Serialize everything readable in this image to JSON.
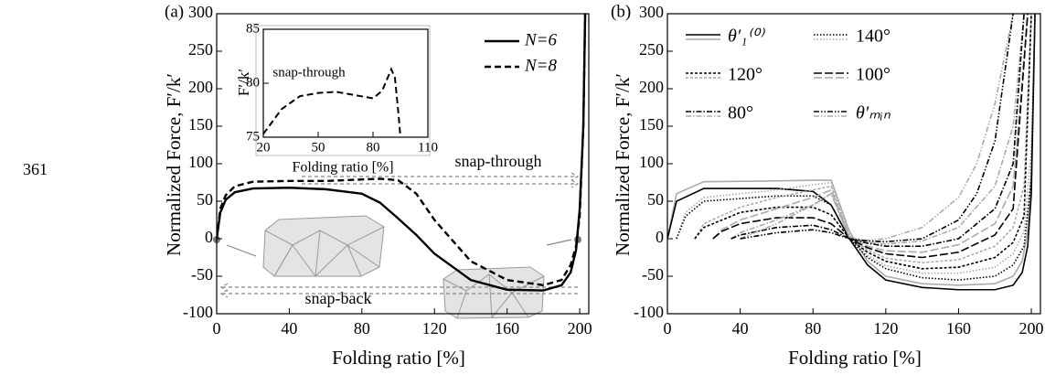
{
  "page_number": "361",
  "chart_data": [
    {
      "type": "line",
      "panel_label": "(a)",
      "xlabel": "Folding ratio [%]",
      "ylabel": "Normalized Force, F′/k′",
      "xlim": [
        0,
        205
      ],
      "ylim": [
        -100,
        300
      ],
      "xticks": [
        0,
        40,
        80,
        120,
        160,
        200
      ],
      "yticks": [
        -100,
        -50,
        0,
        50,
        100,
        150,
        200,
        250,
        300
      ],
      "legend": "upper right",
      "annotations": [
        "snap-through",
        "snap-back"
      ],
      "x": [
        0,
        2,
        5,
        10,
        20,
        40,
        60,
        80,
        90,
        100,
        110,
        120,
        140,
        160,
        180,
        190,
        195,
        198,
        200,
        202,
        203
      ],
      "series": [
        {
          "name": "N=6",
          "color": "#000000",
          "dash": "none",
          "values": [
            0,
            35,
            52,
            62,
            67,
            68,
            66,
            60,
            48,
            27,
            5,
            -20,
            -55,
            -68,
            -69,
            -62,
            -45,
            -15,
            40,
            150,
            300
          ]
        },
        {
          "name": "N=8",
          "color": "#000000",
          "dash": "7,4",
          "values": [
            0,
            40,
            58,
            70,
            76,
            77,
            77,
            79,
            80,
            78,
            60,
            25,
            -30,
            -55,
            -62,
            -55,
            -35,
            -10,
            30,
            150,
            300
          ]
        }
      ]
    },
    {
      "type": "line",
      "xlabel": "Folding ratio [%]",
      "ylabel": "F′/k′",
      "xlim": [
        20,
        110
      ],
      "ylim": [
        75,
        85
      ],
      "xticks": [
        20,
        50,
        80,
        110
      ],
      "yticks": [
        75,
        80,
        85
      ],
      "annotations": [
        "snap-through"
      ],
      "x": [
        20,
        30,
        40,
        50,
        60,
        70,
        80,
        85,
        88,
        90,
        92,
        94,
        95
      ],
      "series": [
        {
          "name": "N=8",
          "color": "#000000",
          "dash": "7,4",
          "values": [
            75.3,
            77.6,
            78.8,
            79.1,
            79.2,
            78.9,
            78.6,
            79.3,
            80.5,
            81.3,
            80.5,
            77,
            75
          ]
        }
      ]
    },
    {
      "type": "line",
      "panel_label": "(b)",
      "xlabel": "Folding ratio [%]",
      "ylabel": "Normalized Force, F′/k′",
      "xlim": [
        0,
        205
      ],
      "ylim": [
        -100,
        300
      ],
      "xticks": [
        0,
        40,
        80,
        120,
        160,
        200
      ],
      "yticks": [
        -100,
        -50,
        0,
        50,
        100,
        150,
        200,
        250,
        300
      ],
      "legend": "upper left",
      "series": [
        {
          "name": "θ′₁⁽⁰⁾",
          "color": "#000000",
          "gray_color": "#aaaaaa",
          "dash": "none",
          "x": [
            0,
            5,
            20,
            60,
            80,
            90,
            100,
            110,
            120,
            140,
            160,
            180,
            190,
            195,
            198,
            200,
            202
          ],
          "values": [
            0,
            50,
            67,
            67,
            63,
            45,
            0,
            -35,
            -55,
            -65,
            -68,
            -68,
            -62,
            -45,
            -10,
            60,
            300
          ],
          "gray_values": [
            0,
            60,
            76,
            77,
            78,
            78,
            10,
            -30,
            -50,
            -60,
            -62,
            -60,
            -50,
            -30,
            10,
            90,
            300
          ]
        },
        {
          "name": "140°",
          "color": "#000000",
          "gray_color": "#aaaaaa",
          "dash": "1.5,2",
          "x": [
            5,
            10,
            20,
            60,
            80,
            90,
            100,
            110,
            120,
            140,
            160,
            180,
            190,
            196,
            200,
            202
          ],
          "values": [
            0,
            30,
            50,
            57,
            57,
            45,
            0,
            -25,
            -40,
            -52,
            -55,
            -50,
            -35,
            -10,
            80,
            300
          ],
          "gray_values": [
            0,
            35,
            55,
            65,
            72,
            75,
            5,
            -22,
            -36,
            -46,
            -46,
            -38,
            -20,
            10,
            120,
            300
          ]
        },
        {
          "name": "120°",
          "color": "#000000",
          "gray_color": "#aaaaaa",
          "dash": "3,2",
          "x": [
            15,
            20,
            40,
            60,
            80,
            90,
            100,
            110,
            120,
            140,
            160,
            180,
            190,
            196,
            200
          ],
          "values": [
            0,
            15,
            35,
            42,
            42,
            32,
            0,
            -18,
            -30,
            -40,
            -38,
            -25,
            -5,
            30,
            300
          ],
          "gray_values": [
            0,
            20,
            42,
            55,
            65,
            70,
            3,
            -15,
            -26,
            -32,
            -28,
            -10,
            15,
            70,
            300
          ]
        },
        {
          "name": "100°",
          "color": "#000000",
          "gray_color": "#aaaaaa",
          "dash": "9,3",
          "x": [
            25,
            30,
            40,
            60,
            80,
            90,
            100,
            110,
            120,
            140,
            160,
            180,
            190,
            198
          ],
          "values": [
            0,
            10,
            20,
            28,
            28,
            20,
            0,
            -12,
            -20,
            -25,
            -18,
            5,
            40,
            300
          ],
          "gray_values": [
            0,
            12,
            25,
            40,
            55,
            65,
            3,
            -10,
            -16,
            -18,
            -8,
            20,
            70,
            300
          ]
        },
        {
          "name": "80°",
          "color": "#000000",
          "gray_color": "#aaaaaa",
          "dash": "6,2,1.5,2",
          "x": [
            35,
            40,
            60,
            80,
            90,
            100,
            110,
            120,
            140,
            160,
            180,
            190,
            196
          ],
          "values": [
            0,
            5,
            15,
            18,
            12,
            0,
            -6,
            -10,
            -10,
            0,
            40,
            100,
            300
          ],
          "gray_values": [
            0,
            8,
            25,
            45,
            60,
            2,
            -5,
            -7,
            -3,
            15,
            70,
            150,
            300
          ]
        },
        {
          "name": "θ′ₘᵢₙ",
          "color": "#000000",
          "gray_color": "#aaaaaa",
          "dash": "6,2,1.5,2,1.5,2",
          "x": [
            40,
            60,
            80,
            90,
            100,
            110,
            120,
            140,
            160,
            170,
            180,
            190
          ],
          "values": [
            0,
            8,
            12,
            8,
            0,
            -3,
            -4,
            0,
            25,
            60,
            130,
            300
          ],
          "gray_values": [
            0,
            20,
            45,
            60,
            1,
            -2,
            0,
            15,
            55,
            100,
            180,
            300
          ]
        }
      ]
    }
  ]
}
